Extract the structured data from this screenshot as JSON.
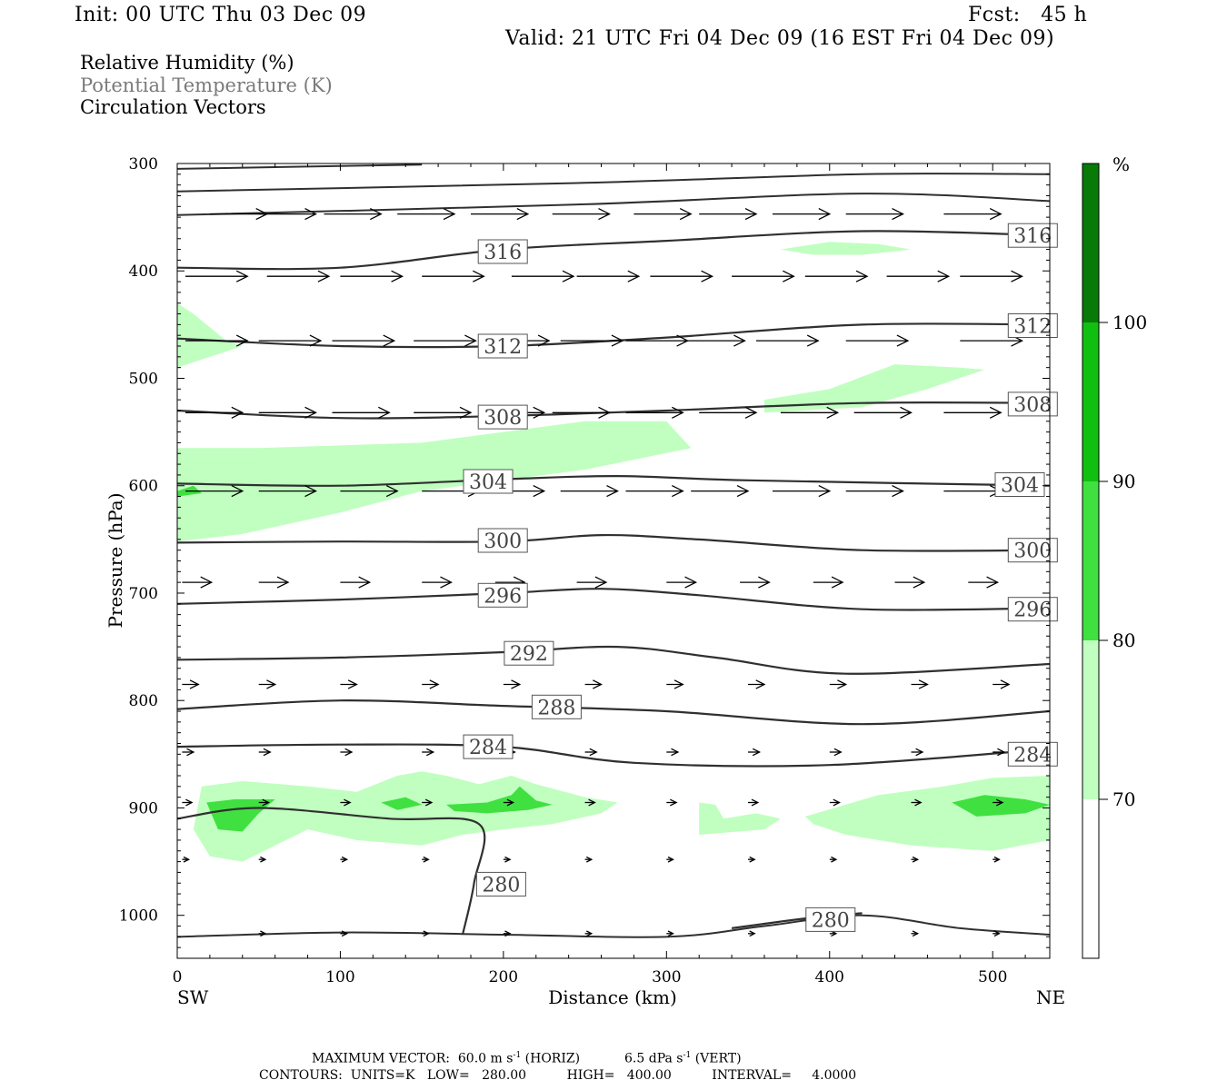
{
  "header": {
    "init": "Init: 00 UTC Thu 03 Dec 09",
    "fcst_label": "Fcst:",
    "fcst_value": "45 h",
    "valid": "Valid: 21 UTC Fri 04 Dec 09 (16 EST Fri 04 Dec 09)"
  },
  "legend_text": {
    "rh": "Relative Humidity (%)",
    "theta": "Potential Temperature (K)",
    "vectors": "Circulation Vectors"
  },
  "colors": {
    "rh_70_80": "#c0ffc0",
    "rh_80_90": "#40e040",
    "rh_90_100": "#10c010",
    "rh_100_plus": "#087a08",
    "contour": "#303030",
    "theta_label": "#7a7a7a"
  },
  "chart_data": {
    "type": "contour",
    "xlabel": "Distance (km)",
    "ylabel": "Pressure (hPa)",
    "xlim": [
      0,
      535
    ],
    "ylim": [
      1040,
      300
    ],
    "y_scale": "linear, inverted",
    "x_ticks": [
      "0",
      "100",
      "200",
      "300",
      "400",
      "500"
    ],
    "y_ticks": [
      "300",
      "400",
      "500",
      "600",
      "700",
      "800",
      "900",
      "1000"
    ],
    "x_endpoints": {
      "left": "SW",
      "right": "NE"
    },
    "colorbar": {
      "unit": "%",
      "levels": [
        "70",
        "80",
        "90",
        "100"
      ]
    },
    "isentropes": [
      {
        "label": "316",
        "pts": [
          [
            0,
            397
          ],
          [
            100,
            397
          ],
          [
            200,
            380
          ],
          [
            300,
            372
          ],
          [
            420,
            363
          ],
          [
            535,
            367
          ]
        ],
        "labels_at": [
          [
            184,
            382
          ],
          [
            509,
            367
          ]
        ]
      },
      {
        "label": "312",
        "pts": [
          [
            0,
            463
          ],
          [
            100,
            470
          ],
          [
            200,
            470
          ],
          [
            300,
            462
          ],
          [
            420,
            450
          ],
          [
            535,
            450
          ]
        ],
        "labels_at": [
          [
            184,
            470
          ],
          [
            509,
            451
          ]
        ]
      },
      {
        "label": "308",
        "pts": [
          [
            0,
            530
          ],
          [
            100,
            537
          ],
          [
            200,
            535
          ],
          [
            300,
            530
          ],
          [
            420,
            523
          ],
          [
            535,
            523
          ]
        ],
        "labels_at": [
          [
            184,
            536
          ],
          [
            509,
            524
          ]
        ]
      },
      {
        "label": "304",
        "pts": [
          [
            0,
            598
          ],
          [
            100,
            600
          ],
          [
            200,
            594
          ],
          [
            270,
            591
          ],
          [
            350,
            595
          ],
          [
            535,
            600
          ]
        ],
        "labels_at": [
          [
            175,
            596
          ],
          [
            501,
            599
          ]
        ]
      },
      {
        "label": "300",
        "pts": [
          [
            0,
            653
          ],
          [
            100,
            652
          ],
          [
            200,
            652
          ],
          [
            260,
            646
          ],
          [
            320,
            650
          ],
          [
            420,
            660
          ],
          [
            535,
            660
          ]
        ],
        "labels_at": [
          [
            184,
            651
          ],
          [
            509,
            660
          ]
        ]
      },
      {
        "label": "296",
        "pts": [
          [
            0,
            710
          ],
          [
            100,
            706
          ],
          [
            200,
            700
          ],
          [
            260,
            696
          ],
          [
            320,
            702
          ],
          [
            420,
            715
          ],
          [
            535,
            714
          ]
        ],
        "labels_at": [
          [
            184,
            702
          ],
          [
            509,
            715
          ]
        ]
      },
      {
        "label": "292",
        "pts": [
          [
            0,
            762
          ],
          [
            100,
            760
          ],
          [
            200,
            755
          ],
          [
            270,
            750
          ],
          [
            330,
            760
          ],
          [
            410,
            775
          ],
          [
            535,
            766
          ]
        ],
        "labels_at": [
          [
            200,
            756
          ]
        ]
      },
      {
        "label": "288",
        "pts": [
          [
            0,
            808
          ],
          [
            100,
            800
          ],
          [
            200,
            805
          ],
          [
            300,
            810
          ],
          [
            420,
            822
          ],
          [
            535,
            810
          ]
        ],
        "labels_at": [
          [
            217,
            806
          ]
        ]
      },
      {
        "label": "284",
        "pts": [
          [
            0,
            843
          ],
          [
            100,
            841
          ],
          [
            200,
            843
          ],
          [
            280,
            858
          ],
          [
            400,
            860
          ],
          [
            535,
            845
          ]
        ],
        "labels_at": [
          [
            175,
            843
          ],
          [
            509,
            850
          ]
        ]
      },
      {
        "label": "280",
        "pts": [
          [
            0,
            910
          ],
          [
            50,
            900
          ],
          [
            130,
            910
          ],
          [
            185,
            915
          ],
          [
            182,
            970
          ],
          [
            175,
            1018
          ]
        ],
        "labels_at": [
          [
            183,
            971
          ]
        ]
      },
      {
        "label": "280",
        "pts": [
          [
            340,
            1012
          ],
          [
            390,
            1002
          ],
          [
            420,
            998
          ]
        ],
        "labels_at": [
          [
            385,
            1004
          ]
        ]
      }
    ],
    "surface_isentrope": [
      [
        0,
        1020
      ],
      [
        100,
        1016
      ],
      [
        200,
        1018
      ],
      [
        300,
        1020
      ],
      [
        360,
        1010
      ],
      [
        420,
        1000
      ],
      [
        480,
        1012
      ],
      [
        535,
        1018
      ]
    ],
    "rh_regions": [
      {
        "level": "70-80",
        "poly": [
          [
            0,
            430
          ],
          [
            10,
            440
          ],
          [
            30,
            465
          ],
          [
            40,
            470
          ],
          [
            0,
            490
          ]
        ]
      },
      {
        "level": "70-80",
        "poly": [
          [
            0,
            565
          ],
          [
            50,
            565
          ],
          [
            150,
            560
          ],
          [
            250,
            540
          ],
          [
            300,
            540
          ],
          [
            315,
            565
          ],
          [
            250,
            585
          ],
          [
            150,
            605
          ],
          [
            100,
            625
          ],
          [
            40,
            645
          ],
          [
            0,
            652
          ]
        ]
      },
      {
        "level": "70-80",
        "poly": [
          [
            360,
            520
          ],
          [
            400,
            510
          ],
          [
            440,
            487
          ],
          [
            480,
            490
          ],
          [
            495,
            492
          ],
          [
            460,
            510
          ],
          [
            420,
            527
          ],
          [
            360,
            532
          ]
        ]
      },
      {
        "level": "70-80",
        "poly": [
          [
            370,
            380
          ],
          [
            400,
            373
          ],
          [
            430,
            375
          ],
          [
            450,
            380
          ],
          [
            420,
            385
          ],
          [
            390,
            385
          ]
        ]
      },
      {
        "level": "70-80",
        "poly": [
          [
            15,
            880
          ],
          [
            40,
            875
          ],
          [
            80,
            880
          ],
          [
            110,
            885
          ],
          [
            135,
            870
          ],
          [
            150,
            866
          ],
          [
            165,
            870
          ],
          [
            185,
            878
          ],
          [
            205,
            870
          ],
          [
            220,
            878
          ],
          [
            250,
            890
          ],
          [
            270,
            895
          ],
          [
            260,
            905
          ],
          [
            230,
            915
          ],
          [
            200,
            920
          ],
          [
            175,
            925
          ],
          [
            150,
            935
          ],
          [
            110,
            930
          ],
          [
            80,
            920
          ],
          [
            60,
            935
          ],
          [
            40,
            950
          ],
          [
            20,
            945
          ],
          [
            10,
            920
          ]
        ]
      },
      {
        "level": "70-80",
        "poly": [
          [
            320,
            895
          ],
          [
            330,
            897
          ],
          [
            335,
            910
          ],
          [
            355,
            905
          ],
          [
            370,
            910
          ],
          [
            360,
            920
          ],
          [
            320,
            925
          ]
        ]
      },
      {
        "level": "70-80",
        "poly": [
          [
            385,
            908
          ],
          [
            430,
            888
          ],
          [
            470,
            880
          ],
          [
            500,
            872
          ],
          [
            535,
            870
          ],
          [
            535,
            930
          ],
          [
            500,
            940
          ],
          [
            450,
            935
          ],
          [
            410,
            925
          ],
          [
            390,
            915
          ]
        ]
      },
      {
        "level": "80-90",
        "poly": [
          [
            18,
            895
          ],
          [
            35,
            892
          ],
          [
            60,
            892
          ],
          [
            50,
            905
          ],
          [
            40,
            922
          ],
          [
            25,
            920
          ]
        ]
      },
      {
        "level": "80-90",
        "poly": [
          [
            125,
            895
          ],
          [
            140,
            890
          ],
          [
            150,
            897
          ],
          [
            135,
            902
          ]
        ]
      },
      {
        "level": "80-90",
        "poly": [
          [
            165,
            897
          ],
          [
            190,
            895
          ],
          [
            205,
            888
          ],
          [
            210,
            880
          ],
          [
            220,
            893
          ],
          [
            230,
            897
          ],
          [
            215,
            902
          ],
          [
            190,
            905
          ],
          [
            170,
            903
          ]
        ]
      },
      {
        "level": "80-90",
        "poly": [
          [
            475,
            895
          ],
          [
            495,
            888
          ],
          [
            520,
            892
          ],
          [
            535,
            897
          ],
          [
            520,
            905
          ],
          [
            490,
            908
          ]
        ]
      },
      {
        "level": "80-90",
        "poly": [
          [
            0,
            605
          ],
          [
            10,
            600
          ],
          [
            15,
            607
          ],
          [
            0,
            610
          ]
        ]
      }
    ],
    "vectors": [
      {
        "p": 347,
        "y0": 0,
        "xs": [
          20,
          50,
          90,
          135,
          180,
          230,
          280,
          320,
          365,
          410,
          470
        ],
        "dx": 35,
        "dy": 0
      },
      {
        "p": 405,
        "y0": 0,
        "xs": [
          5,
          55,
          100,
          150,
          205,
          245,
          290,
          340,
          385,
          435,
          480
        ],
        "dx": 38,
        "dy": 0
      },
      {
        "p": 465,
        "y0": 0,
        "xs": [
          5,
          50,
          95,
          145,
          190,
          235,
          275,
          310,
          355,
          410,
          480
        ],
        "dx": 38,
        "dy": 0
      },
      {
        "p": 532,
        "y0": 0,
        "xs": [
          5,
          50,
          95,
          145,
          190,
          230,
          275,
          320,
          370,
          415,
          470
        ],
        "dx": 35,
        "dy": 0
      },
      {
        "p": 605,
        "y0": 0,
        "xs": [
          5,
          50,
          100,
          150,
          190,
          235,
          275,
          315,
          365,
          410,
          470
        ],
        "dx": 35,
        "dy": 0
      },
      {
        "p": 690,
        "y0": 0,
        "xs": [
          3,
          50,
          100,
          150,
          195,
          245,
          300,
          345,
          390,
          440,
          485
        ],
        "dx": 18,
        "dy": 0
      },
      {
        "p": 785,
        "y0": 0,
        "xs": [
          3,
          50,
          100,
          150,
          200,
          250,
          300,
          350,
          400,
          450,
          500
        ],
        "dx": 10,
        "dy": 0
      },
      {
        "p": 848,
        "y0": 0,
        "xs": [
          3,
          50,
          100,
          150,
          200,
          250,
          300,
          350,
          400,
          450,
          500
        ],
        "dx": 7,
        "dy": 0
      },
      {
        "p": 895,
        "y0": 0,
        "xs": [
          3,
          50,
          100,
          150,
          200,
          250,
          300,
          350,
          400,
          450,
          500
        ],
        "dx": 6,
        "dy": 0
      },
      {
        "p": 948,
        "y0": 0,
        "xs": [
          3,
          50,
          100,
          150,
          200,
          250,
          300,
          350,
          400,
          450,
          500
        ],
        "dx": 4,
        "dy": 0
      },
      {
        "p": 1017,
        "y0": 0,
        "xs": [
          50,
          100,
          150,
          200,
          250,
          300,
          350,
          400,
          450,
          500
        ],
        "dx": 4,
        "dy": 0
      }
    ]
  },
  "footer": {
    "max_vector": "MAXIMUM VECTOR:  60.0 m s",
    "max_vector_unit_sup": "-1",
    "max_vector_horiz": " (HORIZ)",
    "max_vector_vert": "6.5 dPa s",
    "max_vector_vert_sup": "-1",
    "max_vector_vert_tail": " (VERT)",
    "contours": "CONTOURS:  UNITS=K   LOW=   280.00          HIGH=   400.00          INTERVAL=     4.0000"
  }
}
